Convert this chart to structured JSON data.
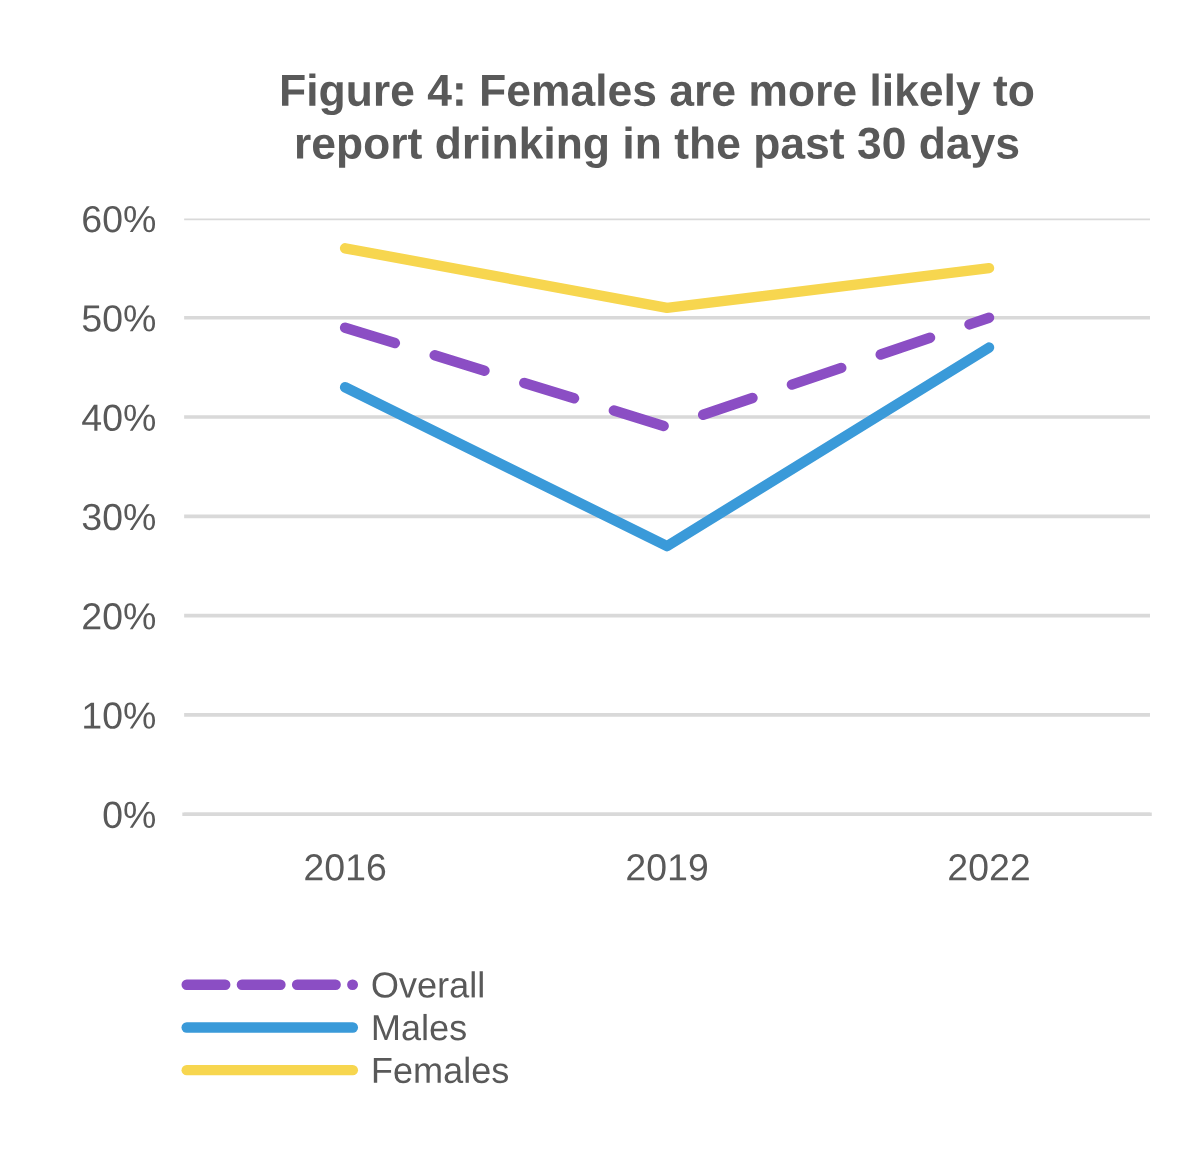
{
  "chart_data": {
    "type": "line",
    "title": "Figure 4: Females are more likely to\nreport drinking in the past 30 days",
    "categories": [
      "2016",
      "2019",
      "2022"
    ],
    "series": [
      {
        "name": "Overall",
        "color": "#8b4ec4",
        "line_style": "dashed",
        "values": [
          49,
          39,
          50
        ]
      },
      {
        "name": "Males",
        "color": "#3a9ad9",
        "line_style": "solid",
        "values": [
          43,
          27,
          47
        ]
      },
      {
        "name": "Females",
        "color": "#f7d64f",
        "line_style": "solid",
        "values": [
          57,
          51,
          55
        ]
      }
    ],
    "ylim": [
      0,
      60
    ],
    "yticks": [
      {
        "value": 0,
        "label": "0%"
      },
      {
        "value": 10,
        "label": "10%"
      },
      {
        "value": 20,
        "label": "20%"
      },
      {
        "value": 30,
        "label": "30%"
      },
      {
        "value": 40,
        "label": "40%"
      },
      {
        "value": 50,
        "label": "50%"
      },
      {
        "value": 60,
        "label": "60%"
      }
    ],
    "grid": "y",
    "legend": "bottom"
  }
}
